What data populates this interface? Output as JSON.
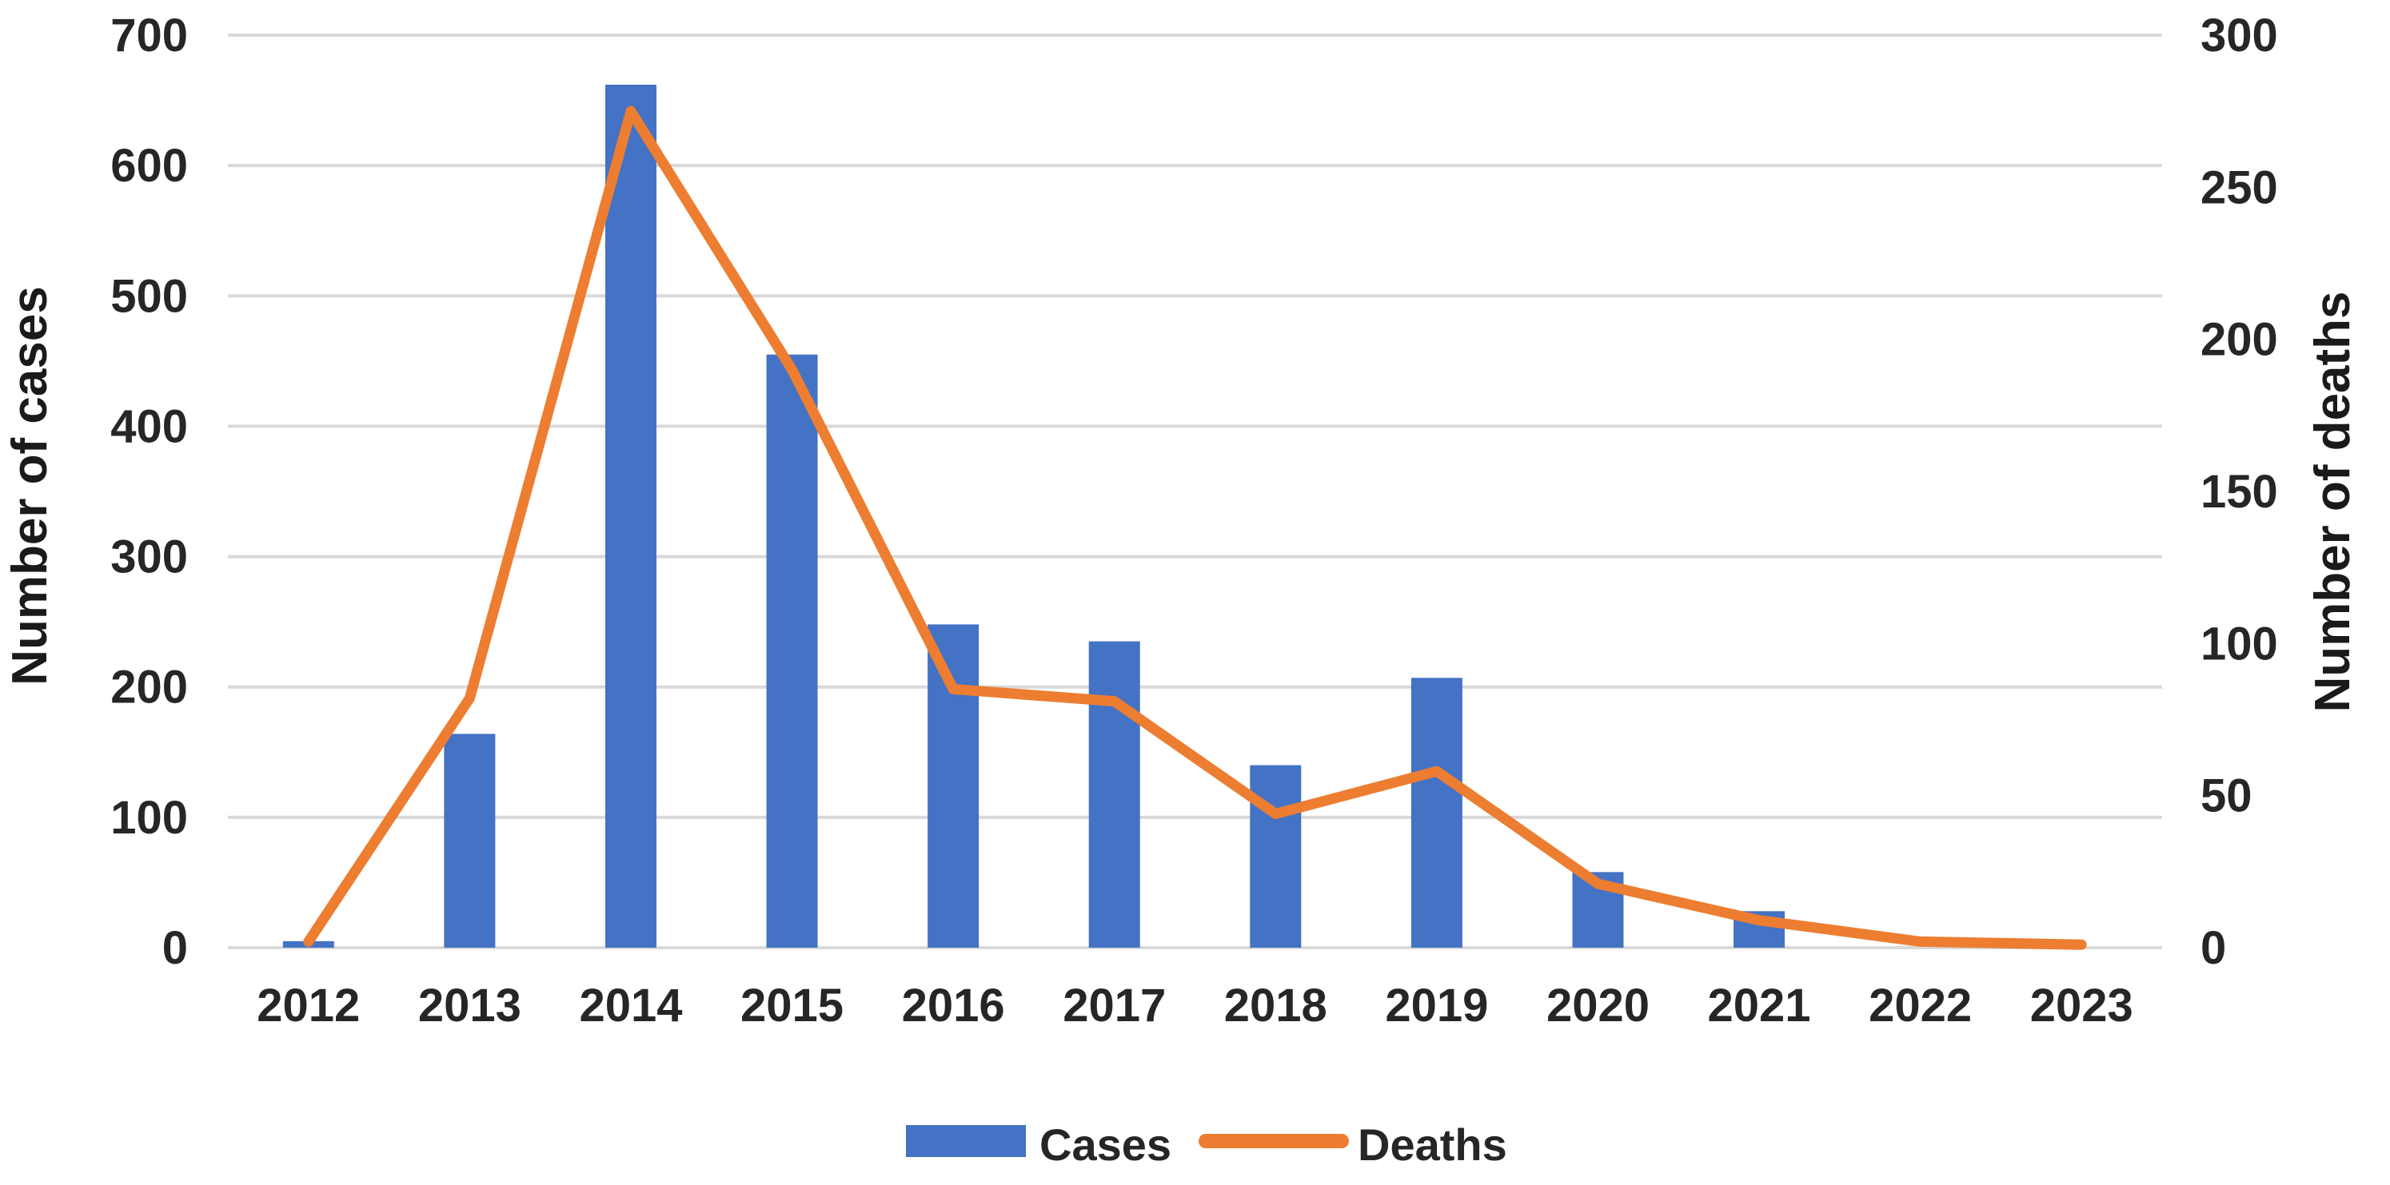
{
  "chart_data": {
    "type": "combo-bar-line",
    "title": "",
    "categories": [
      "2012",
      "2013",
      "2014",
      "2015",
      "2016",
      "2017",
      "2018",
      "2019",
      "2020",
      "2021",
      "2022",
      "2023"
    ],
    "series": [
      {
        "name": "Cases",
        "type": "bar",
        "axis": "left",
        "color": "#4472C4",
        "values": [
          5,
          164,
          662,
          455,
          248,
          235,
          140,
          207,
          58,
          28,
          0,
          0
        ]
      },
      {
        "name": "Deaths",
        "type": "line",
        "axis": "right",
        "color": "#ED7D31",
        "values": [
          2,
          82,
          275,
          190,
          85,
          81,
          44,
          58,
          21,
          9,
          2,
          1
        ]
      }
    ],
    "left_axis": {
      "label": "Number of cases",
      "min": 0,
      "max": 700,
      "step": 100,
      "tick_labels": [
        "0",
        "100",
        "200",
        "300",
        "400",
        "500",
        "600",
        "700"
      ]
    },
    "right_axis": {
      "label": "Number of deaths",
      "min": 0,
      "max": 300,
      "step": 50,
      "tick_labels": [
        "0",
        "50",
        "100",
        "150",
        "200",
        "250",
        "300"
      ]
    },
    "legend": {
      "position": "bottom",
      "items": [
        {
          "label": "Cases",
          "swatch": "bar"
        },
        {
          "label": "Deaths",
          "swatch": "line"
        }
      ]
    },
    "grid": {
      "show": true,
      "color": "#D9D9D9"
    },
    "text_color": "#262626",
    "background": "#FFFFFF"
  }
}
